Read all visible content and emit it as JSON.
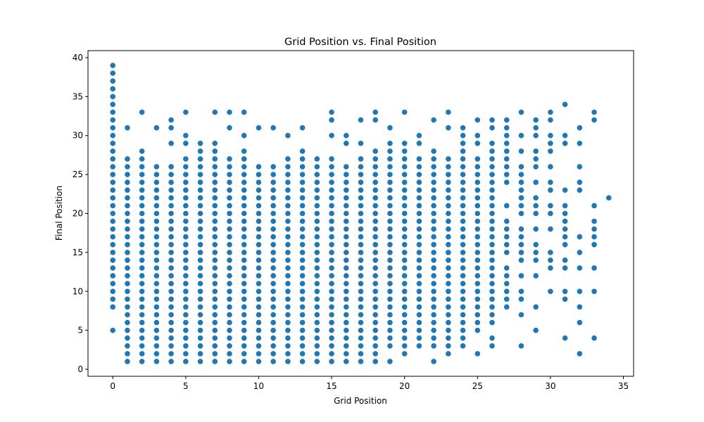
{
  "chart_data": {
    "type": "scatter",
    "title": "Grid Position vs. Final Position",
    "xlabel": "Grid Position",
    "ylabel": "Final Position",
    "xlim": [
      -1.7,
      35.7
    ],
    "ylim": [
      -0.9,
      40.9
    ],
    "xticks": [
      0,
      5,
      10,
      15,
      20,
      25,
      30,
      35
    ],
    "yticks": [
      0,
      5,
      10,
      15,
      20,
      25,
      30,
      35,
      40
    ],
    "marker_color": "#1f77b4",
    "grid": false,
    "legend": "none",
    "columns": [
      {
        "x": 0,
        "y": [
          5,
          8,
          9,
          10,
          11,
          12,
          13,
          14,
          15,
          16,
          17,
          18,
          19,
          20,
          21,
          22,
          23,
          24,
          25,
          26,
          27,
          28,
          29,
          30,
          31,
          32,
          33,
          34,
          35,
          36,
          37,
          38,
          39
        ]
      },
      {
        "x": 1,
        "y": [
          1,
          2,
          3,
          4,
          5,
          6,
          7,
          8,
          9,
          10,
          11,
          12,
          13,
          14,
          15,
          16,
          17,
          18,
          19,
          20,
          21,
          22,
          23,
          24,
          25,
          26,
          27,
          31
        ]
      },
      {
        "x": 2,
        "y": [
          1,
          2,
          3,
          4,
          5,
          6,
          7,
          8,
          9,
          10,
          11,
          12,
          13,
          14,
          15,
          16,
          17,
          18,
          19,
          20,
          21,
          22,
          23,
          24,
          25,
          26,
          27,
          28,
          33
        ]
      },
      {
        "x": 3,
        "y": [
          1,
          2,
          3,
          4,
          5,
          6,
          7,
          8,
          9,
          10,
          11,
          12,
          13,
          14,
          15,
          16,
          17,
          18,
          19,
          20,
          21,
          22,
          23,
          24,
          25,
          26,
          31
        ]
      },
      {
        "x": 4,
        "y": [
          1,
          2,
          3,
          4,
          5,
          6,
          7,
          8,
          9,
          10,
          11,
          12,
          13,
          14,
          15,
          16,
          17,
          18,
          19,
          20,
          21,
          22,
          23,
          24,
          25,
          26,
          29,
          31,
          32
        ]
      },
      {
        "x": 5,
        "y": [
          1,
          2,
          3,
          4,
          5,
          6,
          7,
          8,
          9,
          10,
          11,
          12,
          13,
          14,
          15,
          16,
          17,
          18,
          19,
          20,
          21,
          22,
          23,
          24,
          25,
          26,
          27,
          29,
          30,
          33
        ]
      },
      {
        "x": 6,
        "y": [
          1,
          2,
          3,
          4,
          5,
          6,
          7,
          8,
          9,
          10,
          11,
          12,
          13,
          14,
          15,
          16,
          17,
          18,
          19,
          20,
          21,
          22,
          23,
          24,
          25,
          26,
          27,
          28,
          29
        ]
      },
      {
        "x": 7,
        "y": [
          1,
          2,
          3,
          4,
          5,
          6,
          7,
          8,
          9,
          10,
          11,
          12,
          13,
          14,
          15,
          16,
          17,
          18,
          19,
          20,
          21,
          22,
          23,
          24,
          25,
          26,
          27,
          28,
          29,
          33
        ]
      },
      {
        "x": 8,
        "y": [
          1,
          2,
          3,
          4,
          5,
          6,
          7,
          8,
          9,
          10,
          11,
          12,
          13,
          14,
          15,
          16,
          17,
          18,
          19,
          20,
          21,
          22,
          23,
          24,
          25,
          26,
          27,
          31,
          33
        ]
      },
      {
        "x": 9,
        "y": [
          1,
          2,
          3,
          4,
          5,
          6,
          7,
          8,
          9,
          10,
          11,
          12,
          13,
          14,
          15,
          16,
          17,
          18,
          19,
          20,
          21,
          22,
          23,
          24,
          25,
          26,
          27,
          28,
          30,
          33
        ]
      },
      {
        "x": 10,
        "y": [
          1,
          2,
          3,
          4,
          5,
          6,
          7,
          8,
          9,
          10,
          11,
          12,
          13,
          14,
          15,
          16,
          17,
          18,
          19,
          20,
          21,
          22,
          23,
          24,
          25,
          26,
          31
        ]
      },
      {
        "x": 11,
        "y": [
          1,
          2,
          3,
          4,
          5,
          6,
          7,
          8,
          9,
          10,
          11,
          12,
          13,
          14,
          15,
          16,
          17,
          18,
          19,
          20,
          21,
          22,
          23,
          24,
          25,
          26,
          31
        ]
      },
      {
        "x": 12,
        "y": [
          1,
          2,
          3,
          4,
          5,
          6,
          7,
          8,
          9,
          10,
          11,
          12,
          13,
          14,
          15,
          16,
          17,
          18,
          19,
          20,
          21,
          22,
          23,
          24,
          25,
          26,
          27,
          30
        ]
      },
      {
        "x": 13,
        "y": [
          1,
          2,
          3,
          4,
          5,
          6,
          7,
          8,
          9,
          10,
          11,
          12,
          13,
          14,
          15,
          16,
          17,
          18,
          19,
          20,
          21,
          22,
          23,
          24,
          25,
          26,
          27,
          28,
          31
        ]
      },
      {
        "x": 14,
        "y": [
          1,
          2,
          3,
          4,
          5,
          6,
          7,
          8,
          9,
          10,
          11,
          12,
          13,
          14,
          15,
          16,
          17,
          18,
          19,
          20,
          21,
          22,
          23,
          24,
          25,
          26,
          27
        ]
      },
      {
        "x": 15,
        "y": [
          1,
          2,
          3,
          4,
          5,
          6,
          7,
          8,
          9,
          10,
          11,
          12,
          13,
          14,
          15,
          16,
          17,
          18,
          19,
          20,
          21,
          22,
          23,
          24,
          25,
          26,
          27,
          30,
          32,
          33
        ]
      },
      {
        "x": 16,
        "y": [
          1,
          2,
          3,
          4,
          5,
          6,
          7,
          8,
          9,
          10,
          11,
          12,
          13,
          14,
          15,
          16,
          17,
          18,
          19,
          20,
          21,
          22,
          23,
          24,
          25,
          26,
          29,
          30
        ]
      },
      {
        "x": 17,
        "y": [
          1,
          2,
          3,
          4,
          5,
          6,
          7,
          8,
          9,
          10,
          11,
          12,
          13,
          14,
          15,
          16,
          17,
          18,
          19,
          20,
          21,
          22,
          23,
          24,
          25,
          26,
          27,
          29,
          32
        ]
      },
      {
        "x": 18,
        "y": [
          1,
          2,
          3,
          4,
          5,
          6,
          7,
          8,
          9,
          10,
          11,
          12,
          13,
          14,
          15,
          16,
          17,
          18,
          19,
          20,
          21,
          22,
          23,
          24,
          25,
          26,
          27,
          28,
          32,
          33
        ]
      },
      {
        "x": 19,
        "y": [
          1,
          3,
          4,
          5,
          6,
          7,
          8,
          9,
          10,
          11,
          12,
          13,
          14,
          15,
          16,
          17,
          18,
          19,
          20,
          21,
          22,
          23,
          24,
          25,
          26,
          27,
          28,
          29,
          31
        ]
      },
      {
        "x": 20,
        "y": [
          2,
          3,
          4,
          5,
          6,
          7,
          8,
          9,
          10,
          11,
          12,
          13,
          14,
          15,
          16,
          17,
          18,
          19,
          20,
          21,
          22,
          23,
          24,
          25,
          26,
          27,
          28,
          29,
          33
        ]
      },
      {
        "x": 21,
        "y": [
          3,
          4,
          5,
          6,
          7,
          8,
          9,
          10,
          11,
          12,
          13,
          14,
          15,
          16,
          17,
          18,
          19,
          20,
          21,
          22,
          23,
          24,
          25,
          26,
          27,
          29,
          30
        ]
      },
      {
        "x": 22,
        "y": [
          1,
          3,
          4,
          5,
          6,
          7,
          8,
          9,
          10,
          11,
          12,
          13,
          14,
          15,
          16,
          17,
          18,
          19,
          20,
          21,
          22,
          23,
          24,
          25,
          26,
          27,
          28,
          32
        ]
      },
      {
        "x": 23,
        "y": [
          2,
          3,
          4,
          5,
          6,
          7,
          8,
          9,
          10,
          11,
          12,
          13,
          14,
          15,
          16,
          17,
          18,
          19,
          20,
          21,
          22,
          23,
          24,
          25,
          26,
          27,
          31,
          33
        ]
      },
      {
        "x": 24,
        "y": [
          3,
          4,
          5,
          6,
          7,
          8,
          9,
          10,
          11,
          12,
          13,
          14,
          15,
          16,
          17,
          18,
          19,
          20,
          21,
          22,
          23,
          24,
          25,
          26,
          27,
          28,
          29,
          30,
          31
        ]
      },
      {
        "x": 25,
        "y": [
          2,
          5,
          6,
          7,
          8,
          9,
          10,
          11,
          12,
          13,
          14,
          15,
          16,
          17,
          18,
          19,
          20,
          21,
          22,
          23,
          24,
          25,
          26,
          27,
          29,
          30,
          32
        ]
      },
      {
        "x": 26,
        "y": [
          3,
          4,
          6,
          7,
          8,
          9,
          10,
          11,
          12,
          13,
          14,
          15,
          16,
          17,
          18,
          19,
          20,
          21,
          22,
          23,
          24,
          25,
          26,
          27,
          28,
          29,
          31,
          32
        ]
      },
      {
        "x": 27,
        "y": [
          8,
          9,
          10,
          11,
          12,
          13,
          15,
          16,
          17,
          18,
          19,
          21,
          24,
          25,
          26,
          27,
          28,
          29,
          30,
          31,
          32
        ]
      },
      {
        "x": 28,
        "y": [
          3,
          7,
          9,
          10,
          12,
          14,
          15,
          16,
          17,
          18,
          20,
          21,
          22,
          23,
          24,
          25,
          26,
          28,
          30,
          33
        ]
      },
      {
        "x": 29,
        "y": [
          5,
          8,
          12,
          14,
          15,
          16,
          18,
          20,
          21,
          22,
          24,
          26,
          27,
          28,
          30,
          31,
          32
        ]
      },
      {
        "x": 30,
        "y": [
          10,
          13,
          14,
          15,
          18,
          20,
          21,
          23,
          24,
          26,
          28,
          29,
          30,
          32,
          33
        ]
      },
      {
        "x": 31,
        "y": [
          4,
          9,
          10,
          13,
          14,
          16,
          17,
          18,
          19,
          20,
          21,
          23,
          29,
          30,
          34
        ]
      },
      {
        "x": 32,
        "y": [
          2,
          6,
          8,
          10,
          13,
          15,
          17,
          23,
          24,
          26,
          29,
          31
        ]
      },
      {
        "x": 33,
        "y": [
          4,
          10,
          13,
          16,
          17,
          18,
          19,
          21,
          32,
          33
        ]
      },
      {
        "x": 34,
        "y": [
          22
        ]
      }
    ]
  }
}
